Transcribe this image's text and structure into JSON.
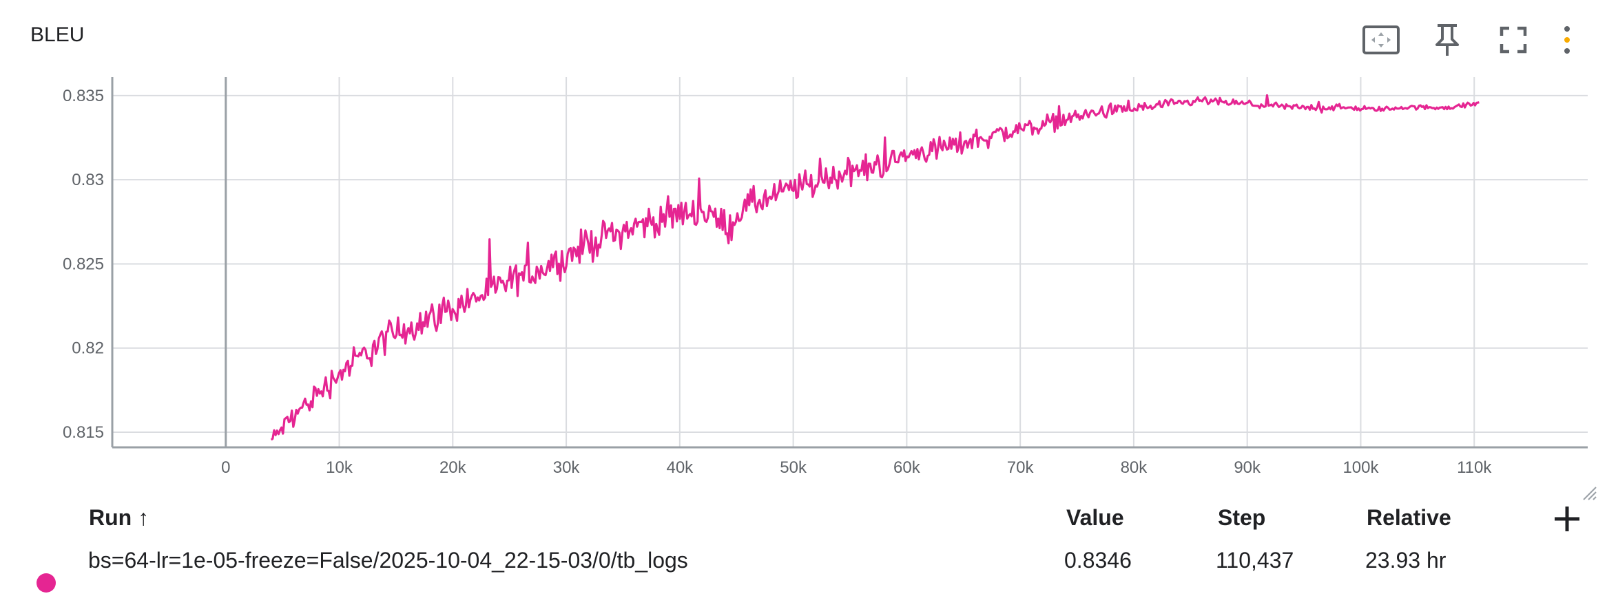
{
  "card": {
    "title": "BLEU"
  },
  "toolbar": {
    "fit_domain": "fit-domain-icon",
    "pin": "pin-icon",
    "fullscreen": "fullscreen-icon",
    "more": "more-options-icon"
  },
  "chart_data": {
    "type": "line",
    "title": "BLEU",
    "xlabel": "",
    "ylabel": "",
    "xlim": [
      -10000,
      120000
    ],
    "ylim": [
      0.8141,
      0.8361
    ],
    "y_ticks": [
      "0.815",
      "0.82",
      "0.825",
      "0.83",
      "0.835"
    ],
    "y_tick_values": [
      0.815,
      0.82,
      0.825,
      0.83,
      0.835
    ],
    "x_ticks": [
      "0",
      "10k",
      "20k",
      "30k",
      "40k",
      "50k",
      "60k",
      "70k",
      "80k",
      "90k",
      "100k",
      "110k"
    ],
    "x_tick_values": [
      0,
      10000,
      20000,
      30000,
      40000,
      50000,
      60000,
      70000,
      80000,
      90000,
      100000,
      110000
    ],
    "grid": true,
    "series": [
      {
        "color": "#e52592",
        "x": [
          4000,
          6000,
          8000,
          10000,
          12000,
          14000,
          16000,
          18000,
          20000,
          22000,
          24000,
          26000,
          28000,
          30000,
          32000,
          34000,
          36000,
          38000,
          40000,
          42000,
          44000,
          46000,
          48000,
          50000,
          52000,
          54000,
          56000,
          58000,
          60000,
          62000,
          64000,
          66000,
          68000,
          70000,
          72000,
          74000,
          76000,
          78000,
          80000,
          82000,
          84000,
          86000,
          88000,
          90000,
          92000,
          94000,
          96000,
          98000,
          100000,
          102000,
          104000,
          106000,
          108000,
          110000,
          110437
        ],
        "y": [
          0.8145,
          0.816,
          0.8172,
          0.8185,
          0.8195,
          0.8205,
          0.8212,
          0.8218,
          0.8224,
          0.823,
          0.8236,
          0.8242,
          0.8248,
          0.8254,
          0.8262,
          0.8268,
          0.8272,
          0.8276,
          0.828,
          0.8282,
          0.8272,
          0.8285,
          0.8289,
          0.8295,
          0.8299,
          0.8303,
          0.8306,
          0.831,
          0.8314,
          0.8318,
          0.832,
          0.8324,
          0.8327,
          0.833,
          0.8333,
          0.8336,
          0.8339,
          0.8341,
          0.8342,
          0.8344,
          0.8345,
          0.8347,
          0.8346,
          0.8345,
          0.8344,
          0.8343,
          0.8343,
          0.8343,
          0.8342,
          0.8342,
          0.8343,
          0.8343,
          0.8343,
          0.8345,
          0.8346
        ],
        "noise": [
          0.0008,
          0.0009,
          0.0012,
          0.0013,
          0.0014,
          0.0015,
          0.0015,
          0.0014,
          0.0014,
          0.0014,
          0.0014,
          0.0014,
          0.0014,
          0.0014,
          0.0015,
          0.0014,
          0.0014,
          0.0014,
          0.0014,
          0.0014,
          0.0014,
          0.0013,
          0.0013,
          0.0013,
          0.0012,
          0.0012,
          0.0012,
          0.0012,
          0.0011,
          0.0011,
          0.001,
          0.001,
          0.001,
          0.0009,
          0.0008,
          0.0007,
          0.0006,
          0.0006,
          0.0005,
          0.0005,
          0.0004,
          0.0004,
          0.0003,
          0.0003,
          0.0003,
          0.0003,
          0.0003,
          0.0003,
          0.0002,
          0.0002,
          0.0002,
          0.0002,
          0.0002,
          0.0002,
          0.0001
        ]
      }
    ]
  },
  "runs_table": {
    "headers": {
      "run": "Run ↑",
      "value": "Value",
      "step": "Step",
      "relative": "Relative"
    },
    "rows": [
      {
        "color": "#e52592",
        "run": "bs=64-lr=1e-05-freeze=False/2025-10-04_22-15-03/0/tb_logs",
        "value": "0.8346",
        "step": "110,437",
        "relative": "23.93 hr"
      }
    ]
  }
}
